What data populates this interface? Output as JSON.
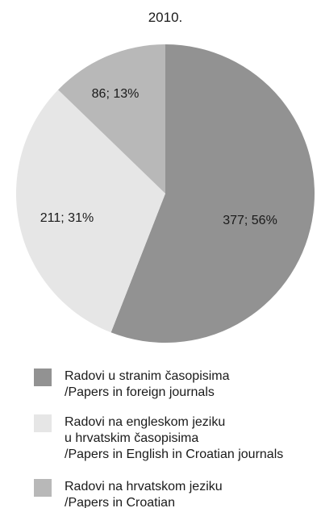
{
  "chart_data": {
    "type": "pie",
    "title": "2010.",
    "slices": [
      {
        "value": 377,
        "percent": 56,
        "label": "377; 56%",
        "color": "#929292",
        "legend": [
          "Radovi u stranim časopisima",
          "/Papers in foreign journals"
        ]
      },
      {
        "value": 211,
        "percent": 31,
        "label": "211; 31%",
        "color": "#e6e6e6",
        "legend": [
          "Radovi na engleskom jeziku",
          "u hrvatskim časopisima",
          "/Papers in English in Croatian journals"
        ]
      },
      {
        "value": 86,
        "percent": 13,
        "label": "86; 13%",
        "color": "#b8b8b8",
        "legend": [
          "Radovi na hrvatskom jeziku",
          "/Papers in Croatian"
        ]
      }
    ],
    "legend_position": "bottom"
  }
}
